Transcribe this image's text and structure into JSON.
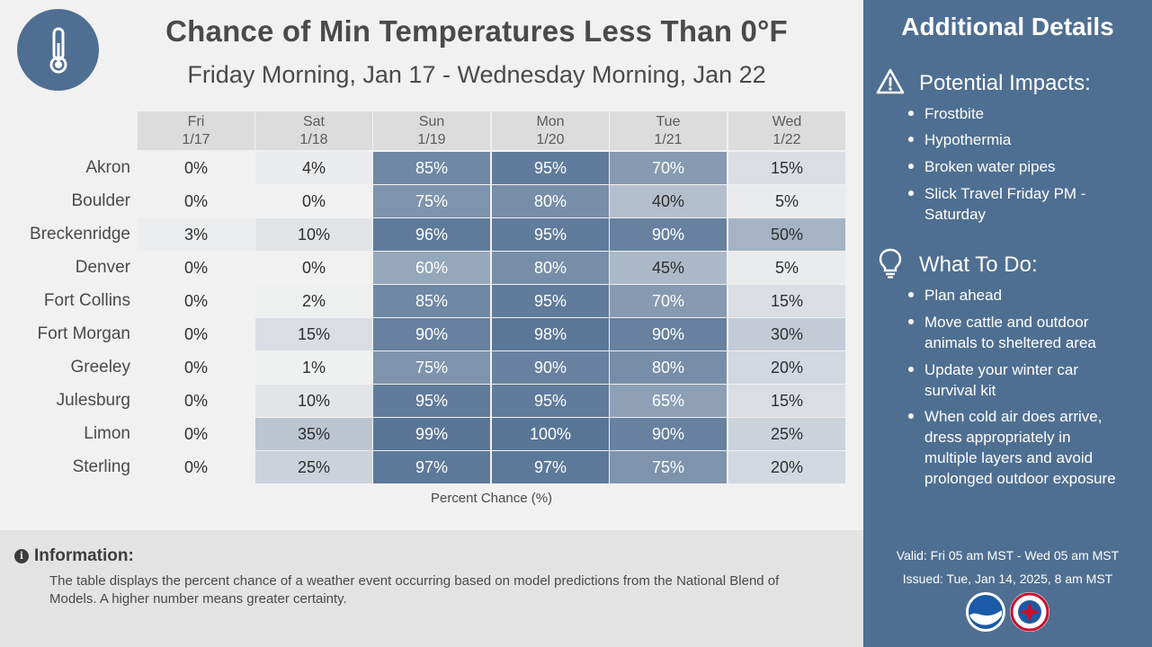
{
  "title": "Chance of Min Temperatures Less Than 0°F",
  "subtitle": "Friday Morning, Jan 17 - Wednesday Morning, Jan 22",
  "chart_data": {
    "type": "table",
    "columns": [
      {
        "day": "Fri",
        "date": "1/17"
      },
      {
        "day": "Sat",
        "date": "1/18"
      },
      {
        "day": "Sun",
        "date": "1/19"
      },
      {
        "day": "Mon",
        "date": "1/20"
      },
      {
        "day": "Tue",
        "date": "1/21"
      },
      {
        "day": "Wed",
        "date": "1/22"
      }
    ],
    "rows": [
      {
        "city": "Akron",
        "values": [
          0,
          4,
          85,
          95,
          70,
          15
        ]
      },
      {
        "city": "Boulder",
        "values": [
          0,
          0,
          75,
          80,
          40,
          5
        ]
      },
      {
        "city": "Breckenridge",
        "values": [
          3,
          10,
          96,
          95,
          90,
          50
        ]
      },
      {
        "city": "Denver",
        "values": [
          0,
          0,
          60,
          80,
          45,
          5
        ]
      },
      {
        "city": "Fort Collins",
        "values": [
          0,
          2,
          85,
          95,
          70,
          15
        ]
      },
      {
        "city": "Fort Morgan",
        "values": [
          0,
          15,
          90,
          98,
          90,
          30
        ]
      },
      {
        "city": "Greeley",
        "values": [
          0,
          1,
          75,
          90,
          80,
          20
        ]
      },
      {
        "city": "Julesburg",
        "values": [
          0,
          10,
          95,
          95,
          65,
          15
        ]
      },
      {
        "city": "Limon",
        "values": [
          0,
          35,
          99,
          100,
          90,
          25
        ]
      },
      {
        "city": "Sterling",
        "values": [
          0,
          25,
          97,
          97,
          75,
          20
        ]
      }
    ],
    "xlabel": "Percent Chance (%)",
    "unit": "%"
  },
  "info": {
    "title": "Information:",
    "text": "The table displays the percent chance of a weather event occurring based on model predictions from the National Blend of Models. A higher number means greater certainty."
  },
  "sidebar": {
    "title": "Additional Details",
    "impacts_title": "Potential Impacts:",
    "impacts": [
      "Frostbite",
      "Hypothermia",
      "Broken water pipes",
      "Slick Travel Friday PM - Saturday"
    ],
    "todo_title": "What To Do:",
    "todo": [
      "Plan ahead",
      "Move cattle and outdoor animals to sheltered area",
      "Update your winter car survival kit",
      "When cold air does arrive, dress appropriately in multiple layers and avoid prolonged outdoor exposure"
    ],
    "valid": "Valid: Fri 05 am MST - Wed 05 am MST",
    "issued": "Issued: Tue, Jan 14, 2025, 8 am MST"
  },
  "colors": {
    "sidebar_bg": "#4f6f92",
    "cell_low": "#f1f1f1",
    "cell_high": "#587596"
  },
  "icons": [
    "thermometer-icon",
    "warning-icon",
    "lightbulb-icon",
    "info-icon",
    "noaa-logo",
    "nws-logo"
  ]
}
